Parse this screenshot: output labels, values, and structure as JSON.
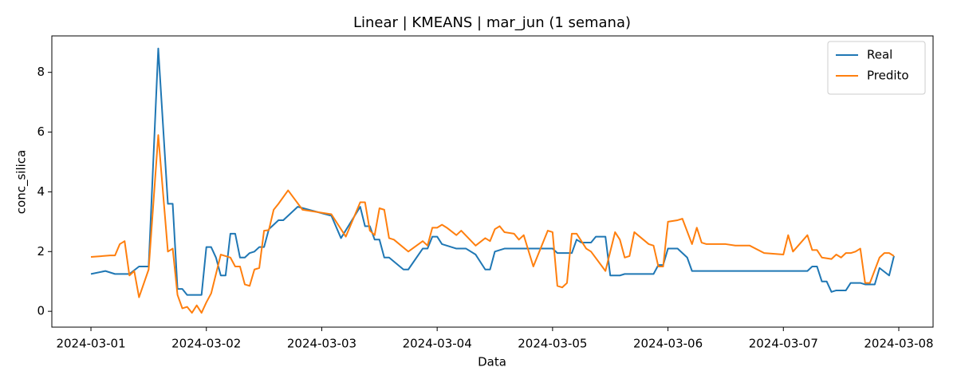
{
  "chart_data": {
    "type": "line",
    "title": "Linear | KMEANS | mar_jun (1 semana)",
    "x_label": "Data",
    "y_label": "conc_silica",
    "xlim": [
      "2024-02-29 15:52",
      "2024-03-08 07:08"
    ],
    "xticks": [
      "2024-03-01",
      "2024-03-02",
      "2024-03-03",
      "2024-03-04",
      "2024-03-05",
      "2024-03-06",
      "2024-03-07",
      "2024-03-08"
    ],
    "ylim": [
      -0.53,
      9.22
    ],
    "yticks": [
      0,
      2,
      4,
      6,
      8
    ],
    "grid": false,
    "legend": "upper right",
    "series": [
      {
        "name": "Real",
        "color": "#1f77b4",
        "x": [
          "2024-03-01 00:00",
          "2024-03-01 03:00",
          "2024-03-01 05:00",
          "2024-03-01 08:00",
          "2024-03-01 10:00",
          "2024-03-01 12:00",
          "2024-03-01 14:00",
          "2024-03-01 16:00",
          "2024-03-01 17:00",
          "2024-03-01 18:00",
          "2024-03-01 19:00",
          "2024-03-01 20:00",
          "2024-03-01 23:00",
          "2024-03-02 00:00",
          "2024-03-02 01:00",
          "2024-03-02 02:00",
          "2024-03-02 03:00",
          "2024-03-02 04:00",
          "2024-03-02 05:00",
          "2024-03-02 06:00",
          "2024-03-02 07:00",
          "2024-03-02 08:00",
          "2024-03-02 09:00",
          "2024-03-02 10:00",
          "2024-03-02 11:00",
          "2024-03-02 12:00",
          "2024-03-02 13:00",
          "2024-03-02 15:00",
          "2024-03-02 16:00",
          "2024-03-02 19:00",
          "2024-03-03 02:00",
          "2024-03-03 04:00",
          "2024-03-03 08:00",
          "2024-03-03 09:00",
          "2024-03-03 10:00",
          "2024-03-03 11:00",
          "2024-03-03 12:00",
          "2024-03-03 13:00",
          "2024-03-03 14:00",
          "2024-03-03 17:00",
          "2024-03-03 18:00",
          "2024-03-03 21:00",
          "2024-03-03 22:00",
          "2024-03-03 23:00",
          "2024-03-04 00:00",
          "2024-03-04 01:00",
          "2024-03-04 04:00",
          "2024-03-04 06:00",
          "2024-03-04 08:00",
          "2024-03-04 10:00",
          "2024-03-04 11:00",
          "2024-03-04 12:00",
          "2024-03-04 13:00",
          "2024-03-04 14:00",
          "2024-03-05 00:00",
          "2024-03-05 01:00",
          "2024-03-05 04:00",
          "2024-03-05 05:00",
          "2024-03-05 06:00",
          "2024-03-05 08:00",
          "2024-03-05 09:00",
          "2024-03-05 11:00",
          "2024-03-05 12:00",
          "2024-03-05 14:00",
          "2024-03-05 15:00",
          "2024-03-05 21:00",
          "2024-03-05 22:00",
          "2024-03-05 23:00",
          "2024-03-06 00:00",
          "2024-03-06 02:00",
          "2024-03-06 04:00",
          "2024-03-06 05:00",
          "2024-03-07 05:00",
          "2024-03-07 06:00",
          "2024-03-07 07:00",
          "2024-03-07 08:00",
          "2024-03-07 09:00",
          "2024-03-07 10:00",
          "2024-03-07 11:00",
          "2024-03-07 13:00",
          "2024-03-07 14:00",
          "2024-03-07 16:00",
          "2024-03-07 17:00",
          "2024-03-07 19:00",
          "2024-03-07 20:00",
          "2024-03-07 22:00",
          "2024-03-07 23:00"
        ],
        "values": [
          1.25,
          1.35,
          1.25,
          1.25,
          1.5,
          1.5,
          8.8,
          3.6,
          3.6,
          0.75,
          0.75,
          0.55,
          0.55,
          2.15,
          2.15,
          1.8,
          1.2,
          1.2,
          2.6,
          2.6,
          1.8,
          1.8,
          1.95,
          2.0,
          2.15,
          2.15,
          2.75,
          3.05,
          3.05,
          3.5,
          3.2,
          2.45,
          3.5,
          2.85,
          2.85,
          2.4,
          2.4,
          1.8,
          1.8,
          1.4,
          1.4,
          2.1,
          2.1,
          2.5,
          2.5,
          2.25,
          2.1,
          2.1,
          1.9,
          1.4,
          1.4,
          2.0,
          2.05,
          2.1,
          2.1,
          1.95,
          1.95,
          2.4,
          2.3,
          2.3,
          2.5,
          2.5,
          1.2,
          1.2,
          1.25,
          1.25,
          1.55,
          1.55,
          2.1,
          2.1,
          1.8,
          1.35,
          1.35,
          1.5,
          1.5,
          1.0,
          1.0,
          0.65,
          0.7,
          0.7,
          0.95,
          0.95,
          0.9,
          0.9,
          1.45,
          1.2,
          1.85
        ]
      },
      {
        "name": "Predito",
        "color": "#ff7f0e",
        "x": [
          "2024-03-01 00:00",
          "2024-03-01 04:00",
          "2024-03-01 05:00",
          "2024-03-01 06:00",
          "2024-03-01 07:00",
          "2024-03-01 08:00",
          "2024-03-01 09:00",
          "2024-03-01 10:00",
          "2024-03-01 12:00",
          "2024-03-01 14:00",
          "2024-03-01 16:00",
          "2024-03-01 17:00",
          "2024-03-01 18:00",
          "2024-03-01 19:00",
          "2024-03-01 20:00",
          "2024-03-01 21:00",
          "2024-03-01 22:00",
          "2024-03-01 23:00",
          "2024-03-02 00:00",
          "2024-03-02 01:00",
          "2024-03-02 03:00",
          "2024-03-02 05:00",
          "2024-03-02 06:00",
          "2024-03-02 07:00",
          "2024-03-02 08:00",
          "2024-03-02 09:00",
          "2024-03-02 10:00",
          "2024-03-02 11:00",
          "2024-03-02 12:00",
          "2024-03-02 13:00",
          "2024-03-02 14:00",
          "2024-03-02 15:00",
          "2024-03-02 17:00",
          "2024-03-02 20:00",
          "2024-03-03 02:00",
          "2024-03-03 05:00",
          "2024-03-03 08:00",
          "2024-03-03 09:00",
          "2024-03-03 10:00",
          "2024-03-03 11:00",
          "2024-03-03 12:00",
          "2024-03-03 13:00",
          "2024-03-03 14:00",
          "2024-03-03 15:00",
          "2024-03-03 18:00",
          "2024-03-03 21:00",
          "2024-03-03 22:00",
          "2024-03-03 23:00",
          "2024-03-04 00:00",
          "2024-03-04 01:00",
          "2024-03-04 02:00",
          "2024-03-04 04:00",
          "2024-03-04 05:00",
          "2024-03-04 08:00",
          "2024-03-04 10:00",
          "2024-03-04 11:00",
          "2024-03-04 12:00",
          "2024-03-04 13:00",
          "2024-03-04 14:00",
          "2024-03-04 16:00",
          "2024-03-04 17:00",
          "2024-03-04 18:00",
          "2024-03-04 20:00",
          "2024-03-04 23:00",
          "2024-03-05 00:00",
          "2024-03-05 01:00",
          "2024-03-05 02:00",
          "2024-03-05 03:00",
          "2024-03-05 04:00",
          "2024-03-05 05:00",
          "2024-03-05 06:00",
          "2024-03-05 07:00",
          "2024-03-05 08:00",
          "2024-03-05 11:00",
          "2024-03-05 12:00",
          "2024-03-05 13:00",
          "2024-03-05 14:00",
          "2024-03-05 15:00",
          "2024-03-05 16:00",
          "2024-03-05 17:00",
          "2024-03-05 20:00",
          "2024-03-05 21:00",
          "2024-03-05 22:00",
          "2024-03-05 23:00",
          "2024-03-06 00:00",
          "2024-03-06 02:00",
          "2024-03-06 03:00",
          "2024-03-06 05:00",
          "2024-03-06 06:00",
          "2024-03-06 07:00",
          "2024-03-06 08:00",
          "2024-03-06 12:00",
          "2024-03-06 14:00",
          "2024-03-06 17:00",
          "2024-03-06 20:00",
          "2024-03-07 00:00",
          "2024-03-07 01:00",
          "2024-03-07 02:00",
          "2024-03-07 05:00",
          "2024-03-07 06:00",
          "2024-03-07 07:00",
          "2024-03-07 08:00",
          "2024-03-07 10:00",
          "2024-03-07 11:00",
          "2024-03-07 12:00",
          "2024-03-07 13:00",
          "2024-03-07 14:00",
          "2024-03-07 15:00",
          "2024-03-07 16:00",
          "2024-03-07 17:00",
          "2024-03-07 18:00",
          "2024-03-07 20:00",
          "2024-03-07 21:00",
          "2024-03-07 22:00",
          "2024-03-07 23:00"
        ],
        "values": [
          1.82,
          1.87,
          1.87,
          2.25,
          2.35,
          1.2,
          1.35,
          0.47,
          1.4,
          5.9,
          2.0,
          2.1,
          0.55,
          0.1,
          0.15,
          -0.05,
          0.2,
          -0.05,
          0.3,
          0.6,
          1.9,
          1.8,
          1.5,
          1.5,
          0.9,
          0.85,
          1.4,
          1.45,
          2.7,
          2.72,
          3.4,
          3.6,
          4.05,
          3.4,
          3.25,
          2.5,
          3.65,
          3.65,
          2.7,
          2.55,
          3.45,
          3.4,
          2.45,
          2.4,
          2.0,
          2.35,
          2.2,
          2.8,
          2.8,
          2.9,
          2.8,
          2.55,
          2.7,
          2.2,
          2.45,
          2.35,
          2.75,
          2.85,
          2.65,
          2.6,
          2.4,
          2.55,
          1.5,
          2.7,
          2.65,
          0.85,
          0.8,
          0.95,
          2.6,
          2.6,
          2.35,
          2.1,
          2.0,
          1.35,
          2.0,
          2.65,
          2.4,
          1.8,
          1.85,
          2.65,
          2.25,
          2.2,
          1.5,
          1.5,
          3.0,
          3.05,
          3.1,
          2.25,
          2.8,
          2.3,
          2.25,
          2.25,
          2.2,
          2.2,
          1.95,
          1.9,
          2.55,
          2.0,
          2.55,
          2.05,
          2.05,
          1.8,
          1.75,
          1.9,
          1.8,
          1.95,
          1.95,
          2.0,
          2.1,
          0.95,
          0.95,
          1.8,
          1.95,
          1.95,
          1.85
        ]
      }
    ]
  }
}
